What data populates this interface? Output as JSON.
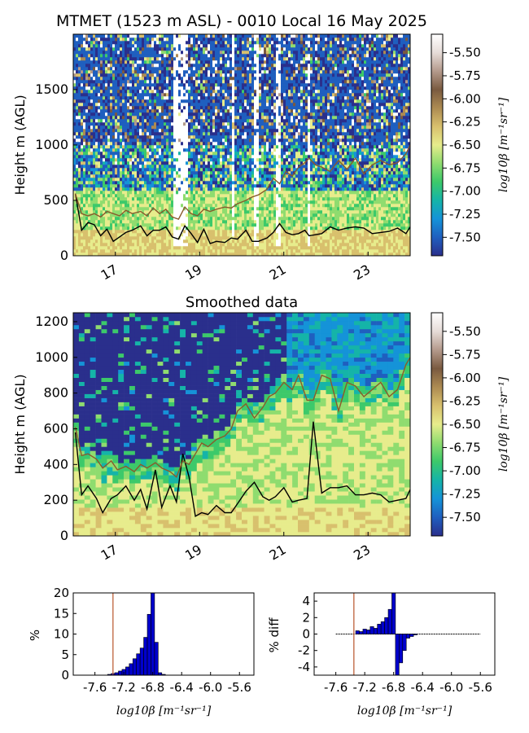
{
  "figure_title": "MTMET (1523 m ASL) - 0010 Local 16 May 2025",
  "smoothed_title": "Smoothed data",
  "colormap": [
    "#2a2f8c",
    "#1f5fbf",
    "#1593d8",
    "#15b4a8",
    "#3cc96a",
    "#8fdc6f",
    "#e7ec8c",
    "#d8c06d",
    "#ad8b52",
    "#7a5a40",
    "#b49a8c",
    "#e6dcd8",
    "#ffffff"
  ],
  "chart_data": [
    {
      "type": "heatmap",
      "panel": "raw",
      "title": "MTMET (1523 m ASL) - 0010 Local 16 May 2025",
      "ylabel": "Height m (AGL)",
      "xlabel": "",
      "xlim": [
        16.0,
        24.0
      ],
      "ylim": [
        0,
        2000
      ],
      "xticks": [
        "17",
        "19",
        "21",
        "23"
      ],
      "yticks": [
        "0",
        "500",
        "1000",
        "1500"
      ],
      "colorbar": {
        "label": "log10β [m⁻¹sr⁻¹]",
        "range": [
          -7.7,
          -5.3
        ],
        "ticks": [
          "-5.50",
          "-5.75",
          "-6.00",
          "-6.25",
          "-6.50",
          "-6.75",
          "-7.00",
          "-7.25",
          "-7.50"
        ]
      },
      "series": [
        {
          "color": "#000000",
          "x": [
            16.05,
            16.2,
            16.35,
            16.5,
            16.65,
            16.8,
            16.95,
            17.1,
            17.25,
            17.4,
            17.6,
            17.75,
            17.9,
            18.05,
            18.2,
            18.35,
            18.5,
            18.65,
            18.8,
            18.95,
            19.1,
            19.25,
            19.4,
            19.6,
            19.75,
            19.9,
            20.1,
            20.25,
            20.4,
            20.6,
            20.75,
            20.9,
            21.05,
            21.2,
            21.35,
            21.5,
            21.6,
            21.75,
            21.9,
            22.1,
            22.3,
            22.5,
            22.7,
            22.9,
            23.1,
            23.3,
            23.5,
            23.7,
            23.9,
            24.0
          ],
          "y": [
            560,
            230,
            300,
            280,
            180,
            240,
            130,
            170,
            210,
            230,
            270,
            180,
            230,
            230,
            260,
            170,
            150,
            270,
            200,
            120,
            240,
            110,
            130,
            120,
            160,
            150,
            230,
            130,
            130,
            160,
            210,
            290,
            210,
            190,
            200,
            230,
            180,
            190,
            200,
            260,
            230,
            250,
            260,
            250,
            200,
            210,
            220,
            250,
            200,
            260
          ]
        },
        {
          "color": "#8a5a2b",
          "x": [
            16.05,
            16.2,
            16.35,
            16.5,
            16.65,
            16.8,
            16.95,
            17.1,
            17.25,
            17.4,
            17.6,
            17.75,
            17.9,
            18.05,
            18.2,
            18.35,
            18.5,
            18.65,
            18.8,
            18.95,
            19.1,
            19.25,
            19.4,
            19.6,
            19.75,
            19.9,
            20.1,
            20.25,
            20.4,
            20.6,
            20.75,
            20.9,
            21.05,
            21.2,
            21.35,
            21.5,
            21.6,
            21.75,
            21.9,
            22.1,
            22.3,
            22.5,
            22.7,
            22.9,
            23.1,
            23.3,
            23.5,
            23.7,
            23.9,
            24.0
          ],
          "y": [
            560,
            380,
            360,
            380,
            350,
            400,
            380,
            360,
            410,
            380,
            400,
            360,
            430,
            380,
            420,
            350,
            330,
            440,
            380,
            360,
            420,
            400,
            420,
            440,
            430,
            470,
            500,
            530,
            550,
            600,
            700,
            650,
            760,
            720,
            800,
            840,
            880,
            820,
            800,
            760,
            860,
            780,
            880,
            740,
            820,
            860,
            820,
            840,
            920,
            1000
          ]
        }
      ]
    },
    {
      "type": "heatmap",
      "panel": "smoothed",
      "title": "Smoothed data",
      "ylabel": "Height m (AGL)",
      "xlabel": "",
      "xlim": [
        16.0,
        24.0
      ],
      "ylim": [
        0,
        1250
      ],
      "xticks": [
        "17",
        "19",
        "21",
        "23"
      ],
      "yticks": [
        "0",
        "200",
        "400",
        "600",
        "800",
        "1000",
        "1200"
      ],
      "colorbar": {
        "label": "log10β [m⁻¹sr⁻¹]",
        "range": [
          -7.7,
          -5.3
        ],
        "ticks": [
          "-5.50",
          "-5.75",
          "-6.00",
          "-6.25",
          "-6.50",
          "-6.75",
          "-7.00",
          "-7.25",
          "-7.50"
        ]
      },
      "series": [
        {
          "color": "#000000",
          "x": [
            16.05,
            16.2,
            16.35,
            16.55,
            16.7,
            16.9,
            17.05,
            17.25,
            17.45,
            17.6,
            17.75,
            17.95,
            18.1,
            18.3,
            18.45,
            18.6,
            18.75,
            18.9,
            19.05,
            19.2,
            19.4,
            19.6,
            19.75,
            19.9,
            20.1,
            20.3,
            20.5,
            20.65,
            20.8,
            21.0,
            21.2,
            21.35,
            21.55,
            21.7,
            21.9,
            22.1,
            22.3,
            22.5,
            22.7,
            22.9,
            23.1,
            23.3,
            23.5,
            23.7,
            23.9,
            24.0
          ],
          "y": [
            580,
            230,
            280,
            210,
            130,
            210,
            230,
            280,
            200,
            260,
            150,
            370,
            160,
            280,
            190,
            460,
            330,
            110,
            130,
            120,
            170,
            130,
            130,
            180,
            250,
            300,
            220,
            200,
            220,
            270,
            190,
            200,
            210,
            640,
            240,
            270,
            270,
            280,
            230,
            230,
            240,
            230,
            190,
            200,
            210,
            260
          ]
        },
        {
          "color": "#8a5a2b",
          "x": [
            16.05,
            16.2,
            16.35,
            16.55,
            16.7,
            16.9,
            17.05,
            17.25,
            17.45,
            17.6,
            17.75,
            17.95,
            18.1,
            18.3,
            18.45,
            18.6,
            18.75,
            18.9,
            19.05,
            19.2,
            19.4,
            19.6,
            19.75,
            19.9,
            20.1,
            20.3,
            20.5,
            20.65,
            20.8,
            21.0,
            21.2,
            21.35,
            21.55,
            21.7,
            21.9,
            22.1,
            22.3,
            22.5,
            22.7,
            22.9,
            23.1,
            23.3,
            23.5,
            23.7,
            23.9,
            24.0
          ],
          "y": [
            610,
            450,
            460,
            430,
            380,
            420,
            370,
            390,
            360,
            400,
            380,
            410,
            380,
            360,
            330,
            420,
            400,
            460,
            520,
            500,
            540,
            560,
            600,
            700,
            740,
            660,
            720,
            780,
            800,
            860,
            820,
            900,
            760,
            760,
            900,
            880,
            700,
            860,
            840,
            780,
            820,
            860,
            780,
            820,
            960,
            1000
          ]
        }
      ]
    },
    {
      "type": "bar",
      "panel": "histogram",
      "ylabel": "%",
      "xlabel": "log10β [m⁻¹sr⁻¹]",
      "xlim": [
        -7.9,
        -5.4
      ],
      "ylim": [
        0,
        20
      ],
      "xticks": [
        "-7.6",
        "-7.2",
        "-6.8",
        "-6.4",
        "-6.0",
        "-5.6"
      ],
      "yticks": [
        "0",
        "5",
        "10",
        "15",
        "20"
      ],
      "bar_color": "#0000cc",
      "reference_line": {
        "x": -7.35,
        "color": "#b8542a"
      },
      "categories": [
        -7.4,
        -7.35,
        -7.3,
        -7.25,
        -7.2,
        -7.15,
        -7.1,
        -7.05,
        -7.0,
        -6.95,
        -6.9,
        -6.85,
        -6.8,
        -6.75,
        -6.7,
        -6.65
      ],
      "values": [
        0.2,
        0.4,
        0.6,
        1.0,
        1.4,
        2.0,
        2.8,
        4.0,
        5.2,
        6.6,
        9.2,
        14.8,
        20.0,
        8.0,
        0.6,
        0.2
      ]
    },
    {
      "type": "bar",
      "panel": "difference",
      "ylabel": "% diff",
      "xlabel": "log10β [m⁻¹sr⁻¹]",
      "xlim": [
        -7.9,
        -5.4
      ],
      "ylim": [
        -5,
        5
      ],
      "xticks": [
        "-7.6",
        "-7.2",
        "-6.8",
        "-6.4",
        "-6.0",
        "-5.6"
      ],
      "yticks": [
        "-4",
        "-2",
        "0",
        "2",
        "4"
      ],
      "bar_color": "#0000cc",
      "reference_line": {
        "x": -7.35,
        "color": "#b8542a"
      },
      "categories": [
        -7.3,
        -7.25,
        -7.2,
        -7.15,
        -7.1,
        -7.05,
        -7.0,
        -6.95,
        -6.9,
        -6.85,
        -6.8,
        -6.75,
        -6.7,
        -6.65,
        -6.6,
        -6.55,
        -6.5
      ],
      "values": [
        0.4,
        0.3,
        0.6,
        0.5,
        0.9,
        0.7,
        1.2,
        1.5,
        2.0,
        3.0,
        5.0,
        -5.0,
        -3.5,
        -2.0,
        -0.5,
        -0.3,
        -0.1
      ]
    }
  ]
}
